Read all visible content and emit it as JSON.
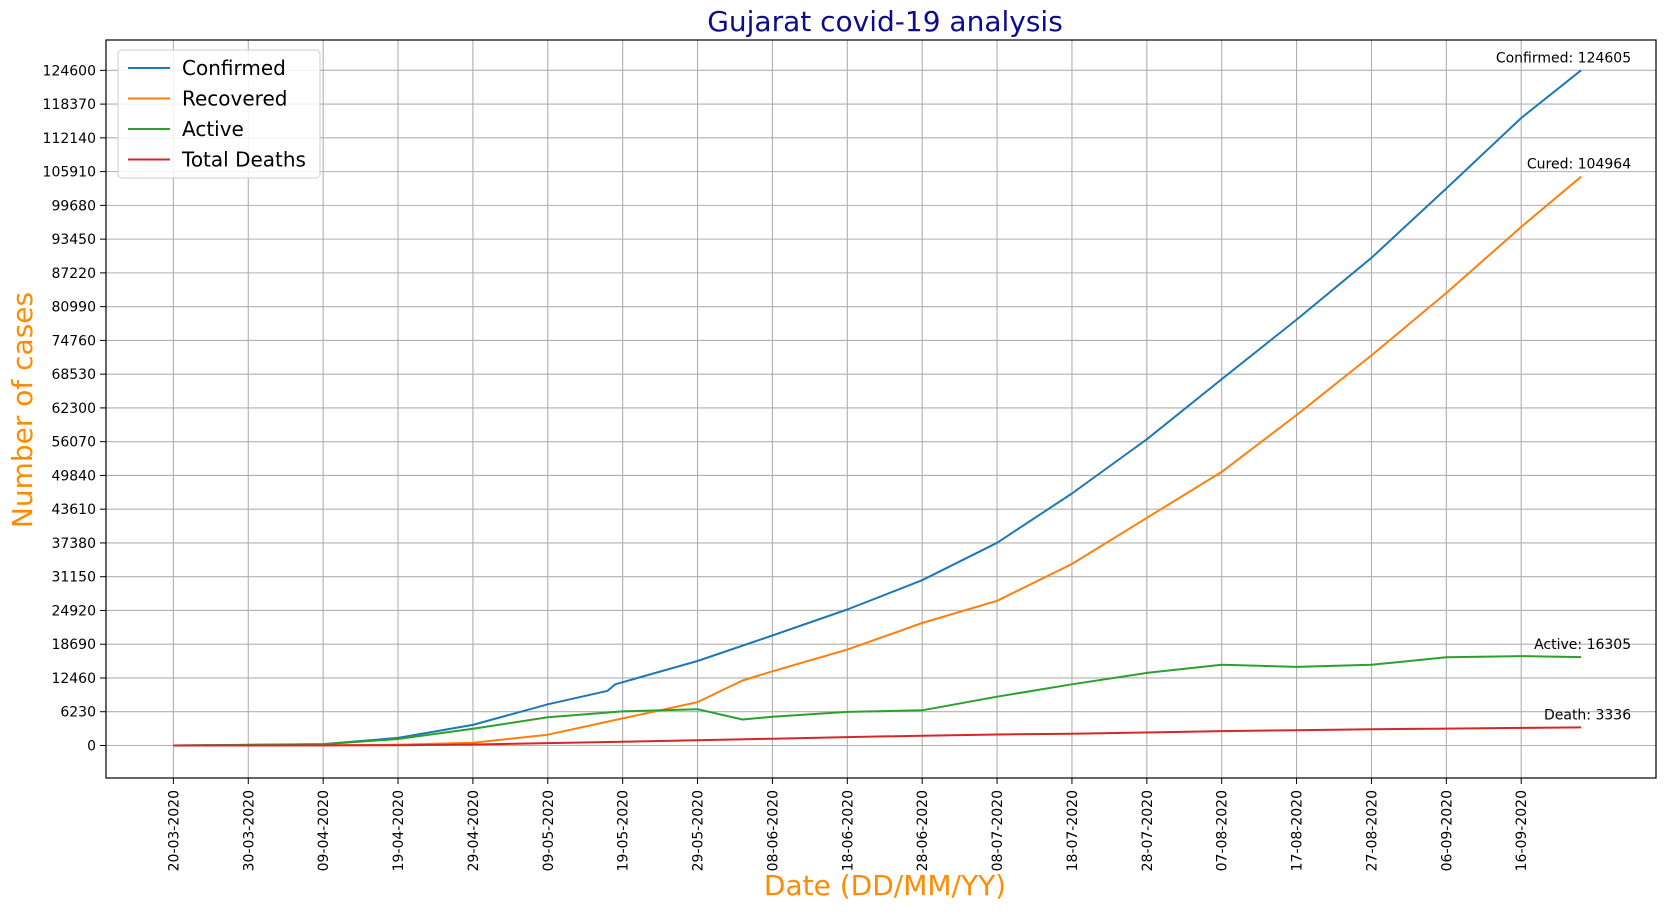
{
  "chart_data": {
    "type": "line",
    "title": "Gujarat covid-19 analysis",
    "xlabel": "Date (DD/MM/YY)",
    "ylabel": "Number of cases",
    "grid": true,
    "legend_position": "top-left",
    "ylim": [
      -6000,
      130200
    ],
    "xlim": [
      "2020-03-11",
      "2020-10-04"
    ],
    "y_ticks": [
      0,
      6230,
      12460,
      18690,
      24920,
      31150,
      37380,
      43610,
      49840,
      56070,
      62300,
      68530,
      74760,
      80990,
      87220,
      93450,
      99680,
      105910,
      112140,
      118370,
      124600
    ],
    "x_tick_labels": [
      "20-03-2020",
      "30-03-2020",
      "09-04-2020",
      "19-04-2020",
      "29-04-2020",
      "09-05-2020",
      "19-05-2020",
      "29-05-2020",
      "08-06-2020",
      "18-06-2020",
      "28-06-2020",
      "08-07-2020",
      "18-07-2020",
      "28-07-2020",
      "07-08-2020",
      "17-08-2020",
      "27-08-2020",
      "06-09-2020",
      "16-09-2020"
    ],
    "colors": {
      "title": "#0c0c8c",
      "axis_label": "#ff8c00",
      "grid": "#b0b0b0",
      "axis": "#000000"
    },
    "series": [
      {
        "name": "Confirmed",
        "color": "#1f77b4",
        "x": [
          "2020-03-20",
          "2020-04-09",
          "2020-04-19",
          "2020-04-29",
          "2020-05-09",
          "2020-05-17",
          "2020-05-18",
          "2020-05-29",
          "2020-06-08",
          "2020-06-18",
          "2020-06-28",
          "2020-07-08",
          "2020-07-18",
          "2020-07-28",
          "2020-08-07",
          "2020-08-17",
          "2020-08-27",
          "2020-09-06",
          "2020-09-16",
          "2020-09-24"
        ],
        "values": [
          2,
          250,
          1400,
          3800,
          7600,
          10100,
          11300,
          15600,
          20300,
          25100,
          30500,
          37400,
          46500,
          56500,
          67600,
          78600,
          90000,
          102800,
          115800,
          124605
        ]
      },
      {
        "name": "Recovered",
        "color": "#ff7f0e",
        "x": [
          "2020-03-20",
          "2020-04-09",
          "2020-04-19",
          "2020-04-29",
          "2020-05-09",
          "2020-05-19",
          "2020-05-29",
          "2020-06-04",
          "2020-06-08",
          "2020-06-18",
          "2020-06-28",
          "2020-07-08",
          "2020-07-18",
          "2020-07-28",
          "2020-08-07",
          "2020-08-17",
          "2020-08-27",
          "2020-09-06",
          "2020-09-16",
          "2020-09-24"
        ],
        "values": [
          0,
          20,
          150,
          500,
          2000,
          5000,
          8000,
          12000,
          13700,
          17700,
          22600,
          26700,
          33500,
          42000,
          50500,
          61000,
          72000,
          83500,
          95700,
          104964
        ]
      },
      {
        "name": "Active",
        "color": "#2ca02c",
        "x": [
          "2020-03-20",
          "2020-04-09",
          "2020-04-19",
          "2020-04-29",
          "2020-05-09",
          "2020-05-19",
          "2020-05-29",
          "2020-06-04",
          "2020-06-08",
          "2020-06-18",
          "2020-06-28",
          "2020-07-08",
          "2020-07-18",
          "2020-07-28",
          "2020-08-07",
          "2020-08-17",
          "2020-08-27",
          "2020-09-06",
          "2020-09-16",
          "2020-09-24"
        ],
        "values": [
          2,
          220,
          1200,
          3100,
          5200,
          6300,
          6700,
          4800,
          5300,
          6200,
          6500,
          9000,
          11300,
          13400,
          14900,
          14500,
          14900,
          16300,
          16500,
          16305
        ]
      },
      {
        "name": "Total Deaths",
        "color": "#d62728",
        "x": [
          "2020-03-20",
          "2020-04-09",
          "2020-04-19",
          "2020-04-29",
          "2020-05-09",
          "2020-05-19",
          "2020-05-29",
          "2020-06-08",
          "2020-06-18",
          "2020-06-28",
          "2020-07-08",
          "2020-07-18",
          "2020-07-28",
          "2020-08-07",
          "2020-08-17",
          "2020-08-27",
          "2020-09-06",
          "2020-09-16",
          "2020-09-24"
        ],
        "values": [
          0,
          10,
          60,
          180,
          450,
          700,
          960,
          1250,
          1550,
          1800,
          2020,
          2180,
          2400,
          2650,
          2820,
          2980,
          3120,
          3250,
          3336
        ]
      }
    ],
    "annotations": [
      {
        "series": "Confirmed",
        "text": "Confirmed: 124605"
      },
      {
        "series": "Recovered",
        "text": "Cured: 104964"
      },
      {
        "series": "Active",
        "text": "Active: 16305"
      },
      {
        "series": "Total Deaths",
        "text": "Death: 3336"
      }
    ]
  }
}
